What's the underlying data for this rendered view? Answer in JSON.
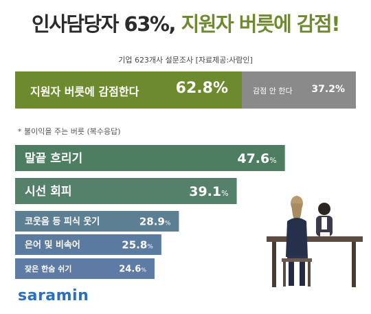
{
  "header": {
    "title_part1": "인사담당자 63%,",
    "title_part2": "지원자 버릇에 감점!",
    "subtitle": "기업 623개사  설문조사 [자료제공:사람인]"
  },
  "split": {
    "yes_label": "지원자 버릇에 감점한다",
    "yes_value": "62.8%",
    "no_label": "감점 안 한다",
    "no_value": "37.2%"
  },
  "note": "* 불이익을 주는 버릇 (복수응답)",
  "chart_data": {
    "type": "bar",
    "orientation": "horizontal",
    "categories": [
      "말끝 흐리기",
      "시선 회피",
      "코웃음 등 피식 웃기",
      "은어 및 비속어",
      "잦은 한숨 쉬기"
    ],
    "values": [
      47.6,
      39.1,
      28.9,
      25.8,
      24.6
    ],
    "value_labels": [
      "47.6",
      "39.1",
      "28.9",
      "25.8",
      "24.6"
    ],
    "unit": "%",
    "colors": [
      "#4e7e62",
      "#55806a",
      "#5d7f94",
      "#5b7aa0",
      "#5e7ba6"
    ]
  },
  "brand": {
    "logo_text": "saramin",
    "logo_color": "#2a6fc2"
  },
  "colors": {
    "accent_green": "#6e8a2e",
    "gray": "#8a8a8a",
    "title_dark": "#2b2b2b"
  }
}
